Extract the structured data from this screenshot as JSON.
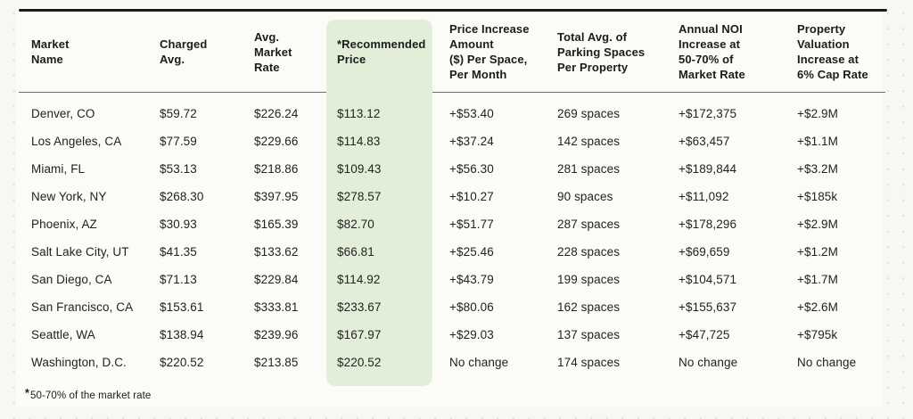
{
  "chart_data": {
    "type": "table",
    "columns": [
      "Market\nName",
      "Charged\nAvg.",
      "Avg.\nMarket\nRate",
      "*Recommended\nPrice",
      "Price Increase\nAmount\n($) Per Space,\nPer Month",
      "Total Avg. of\nParking Spaces\nPer Property",
      "Annual NOI\nIncrease at\n50-70% of\nMarket Rate",
      "Property\nValuation\nIncrease at\n6% Cap Rate"
    ],
    "rows": [
      [
        "Denver, CO",
        "$59.72",
        "$226.24",
        "$113.12",
        "+$53.40",
        "269 spaces",
        "+$172,375",
        "+$2.9M"
      ],
      [
        "Los Angeles, CA",
        "$77.59",
        "$229.66",
        "$114.83",
        "+$37.24",
        "142 spaces",
        "+$63,457",
        "+$1.1M"
      ],
      [
        "Miami, FL",
        "$53.13",
        "$218.86",
        "$109.43",
        "+$56.30",
        "281 spaces",
        "+$189,844",
        "+$3.2M"
      ],
      [
        "New York, NY",
        "$268.30",
        "$397.95",
        "$278.57",
        "+$10.27",
        "90 spaces",
        "+$11,092",
        "+$185k"
      ],
      [
        "Phoenix, AZ",
        "$30.93",
        "$165.39",
        "$82.70",
        "+$51.77",
        "287 spaces",
        "+$178,296",
        "+$2.9M"
      ],
      [
        "Salt Lake City, UT",
        "$41.35",
        "$133.62",
        "$66.81",
        "+$25.46",
        "228 spaces",
        "+$69,659",
        "+$1.2M"
      ],
      [
        "San Diego, CA",
        "$71.13",
        "$229.84",
        "$114.92",
        "+$43.79",
        "199 spaces",
        "+$104,571",
        "+$1.7M"
      ],
      [
        "San Francisco, CA",
        "$153.61",
        "$333.81",
        "$233.67",
        "+$80.06",
        "162 spaces",
        "+$155,637",
        "+$2.6M"
      ],
      [
        "Seattle, WA",
        "$138.94",
        "$239.96",
        "$167.97",
        "+$29.03",
        "137 spaces",
        "+$47,725",
        "+$795k"
      ],
      [
        "Washington, D.C.",
        "$220.52",
        "$213.85",
        "$220.52",
        "No change",
        "174 spaces",
        "No change",
        "No change"
      ]
    ],
    "footnote": {
      "marker": "*",
      "text": "50-70% of the market rate"
    },
    "highlight_column_index": 3,
    "highlight_color": "#E3EED8",
    "layout": {
      "grid": "off",
      "legend": "none"
    }
  }
}
